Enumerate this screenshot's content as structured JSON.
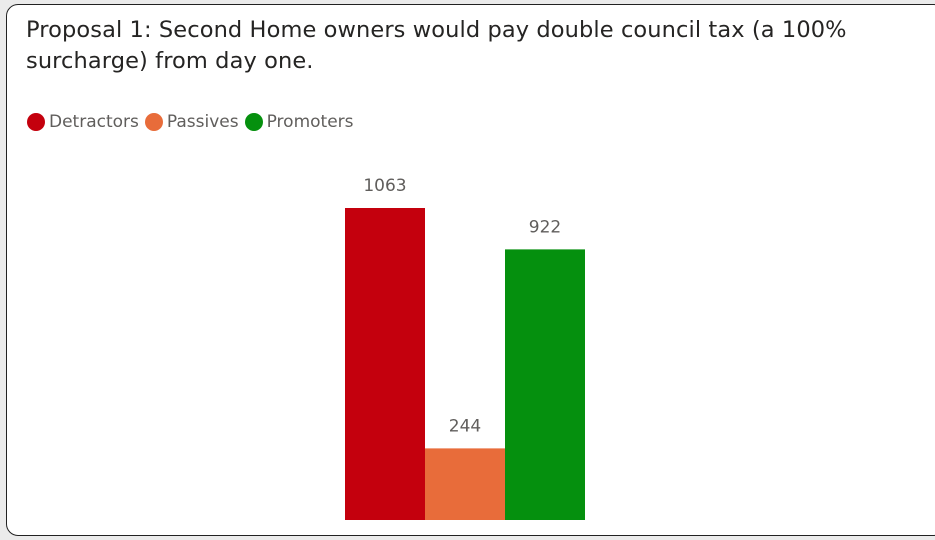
{
  "chart_title": "Proposal 1: Second Home owners would pay double council tax (a 100% surcharge) from day one.",
  "legend": [
    {
      "label": "Detractors",
      "color": "#c4000d"
    },
    {
      "label": "Passives",
      "color": "#e86c3a"
    },
    {
      "label": "Promoters",
      "color": "#05900e"
    }
  ],
  "chart_data": {
    "type": "bar",
    "title": "Proposal 1: Second Home owners would pay double council tax (a 100% surcharge) from day one.",
    "categories": [
      "Detractors",
      "Passives",
      "Promoters"
    ],
    "values": [
      1063,
      244,
      922
    ],
    "colors": [
      "#c4000d",
      "#e86c3a",
      "#05900e"
    ],
    "data_labels": [
      "1063",
      "244",
      "922"
    ],
    "xlabel": "",
    "ylabel": "",
    "ylim": [
      0,
      1063
    ],
    "grid": false,
    "legend_position": "top-left"
  }
}
